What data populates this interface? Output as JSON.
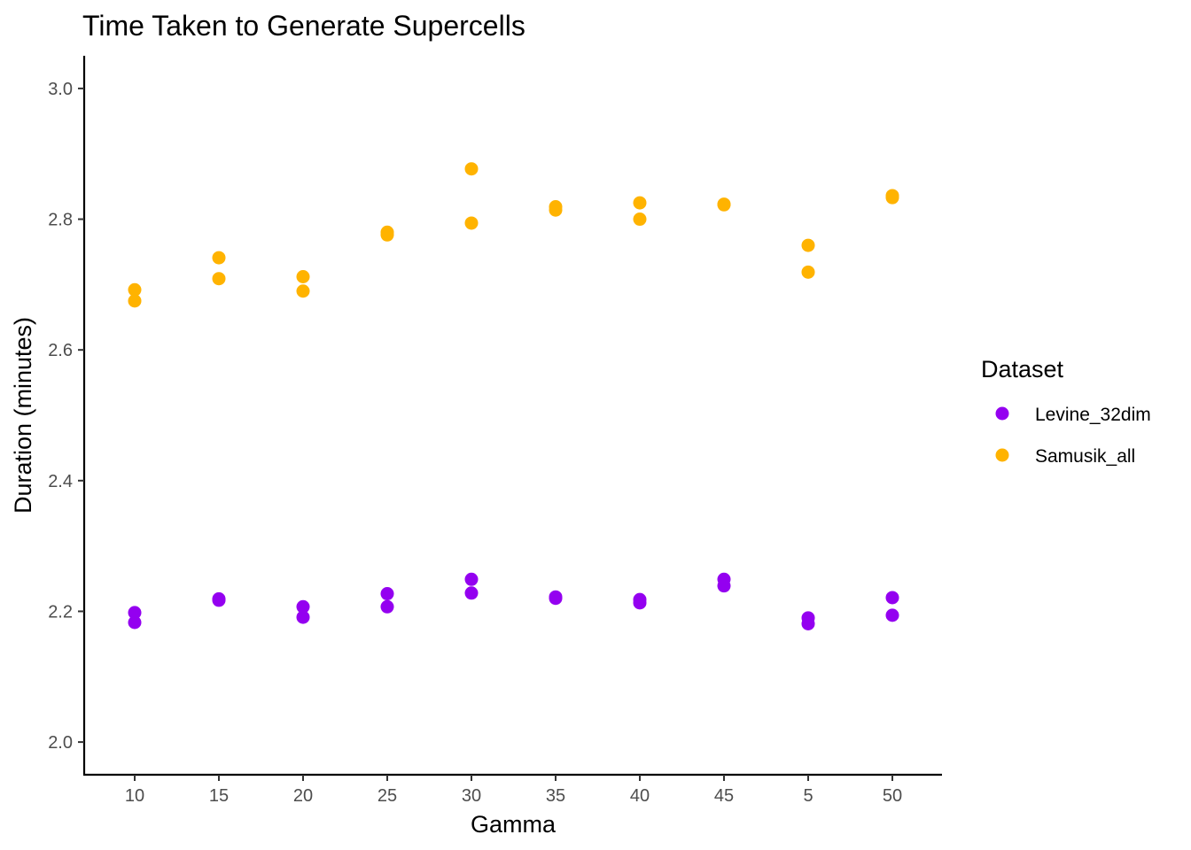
{
  "chart_data": {
    "type": "scatter",
    "title": "Time Taken to Generate Supercells",
    "xlabel": "Gamma",
    "ylabel": "Duration (minutes)",
    "categories": [
      "10",
      "15",
      "20",
      "25",
      "30",
      "35",
      "40",
      "45",
      "5",
      "50"
    ],
    "ylim": [
      1.95,
      3.05
    ],
    "yticks": [
      "2.0",
      "2.2",
      "2.4",
      "2.6",
      "2.8",
      "3.0"
    ],
    "grid": false,
    "legend": {
      "title": "Dataset",
      "position": "right"
    },
    "series": [
      {
        "name": "Levine_32dim",
        "color": "#9400f0",
        "points": [
          {
            "x": "10",
            "y": 2.198
          },
          {
            "x": "10",
            "y": 2.183
          },
          {
            "x": "15",
            "y": 2.219
          },
          {
            "x": "15",
            "y": 2.217
          },
          {
            "x": "20",
            "y": 2.207
          },
          {
            "x": "20",
            "y": 2.191
          },
          {
            "x": "25",
            "y": 2.227
          },
          {
            "x": "25",
            "y": 2.207
          },
          {
            "x": "30",
            "y": 2.249
          },
          {
            "x": "30",
            "y": 2.228
          },
          {
            "x": "35",
            "y": 2.222
          },
          {
            "x": "35",
            "y": 2.22
          },
          {
            "x": "40",
            "y": 2.218
          },
          {
            "x": "40",
            "y": 2.213
          },
          {
            "x": "45",
            "y": 2.249
          },
          {
            "x": "45",
            "y": 2.239
          },
          {
            "x": "5",
            "y": 2.19
          },
          {
            "x": "5",
            "y": 2.181
          },
          {
            "x": "50",
            "y": 2.221
          },
          {
            "x": "50",
            "y": 2.194
          }
        ]
      },
      {
        "name": "Samusik_all",
        "color": "#ffb300",
        "points": [
          {
            "x": "10",
            "y": 2.692
          },
          {
            "x": "10",
            "y": 2.675
          },
          {
            "x": "15",
            "y": 2.741
          },
          {
            "x": "15",
            "y": 2.709
          },
          {
            "x": "20",
            "y": 2.712
          },
          {
            "x": "20",
            "y": 2.69
          },
          {
            "x": "25",
            "y": 2.78
          },
          {
            "x": "25",
            "y": 2.776
          },
          {
            "x": "30",
            "y": 2.877
          },
          {
            "x": "30",
            "y": 2.794
          },
          {
            "x": "35",
            "y": 2.819
          },
          {
            "x": "35",
            "y": 2.814
          },
          {
            "x": "40",
            "y": 2.825
          },
          {
            "x": "40",
            "y": 2.8
          },
          {
            "x": "45",
            "y": 2.823
          },
          {
            "x": "45",
            "y": 2.822
          },
          {
            "x": "5",
            "y": 2.76
          },
          {
            "x": "5",
            "y": 2.719
          },
          {
            "x": "50",
            "y": 2.836
          },
          {
            "x": "50",
            "y": 2.833
          }
        ]
      }
    ]
  }
}
